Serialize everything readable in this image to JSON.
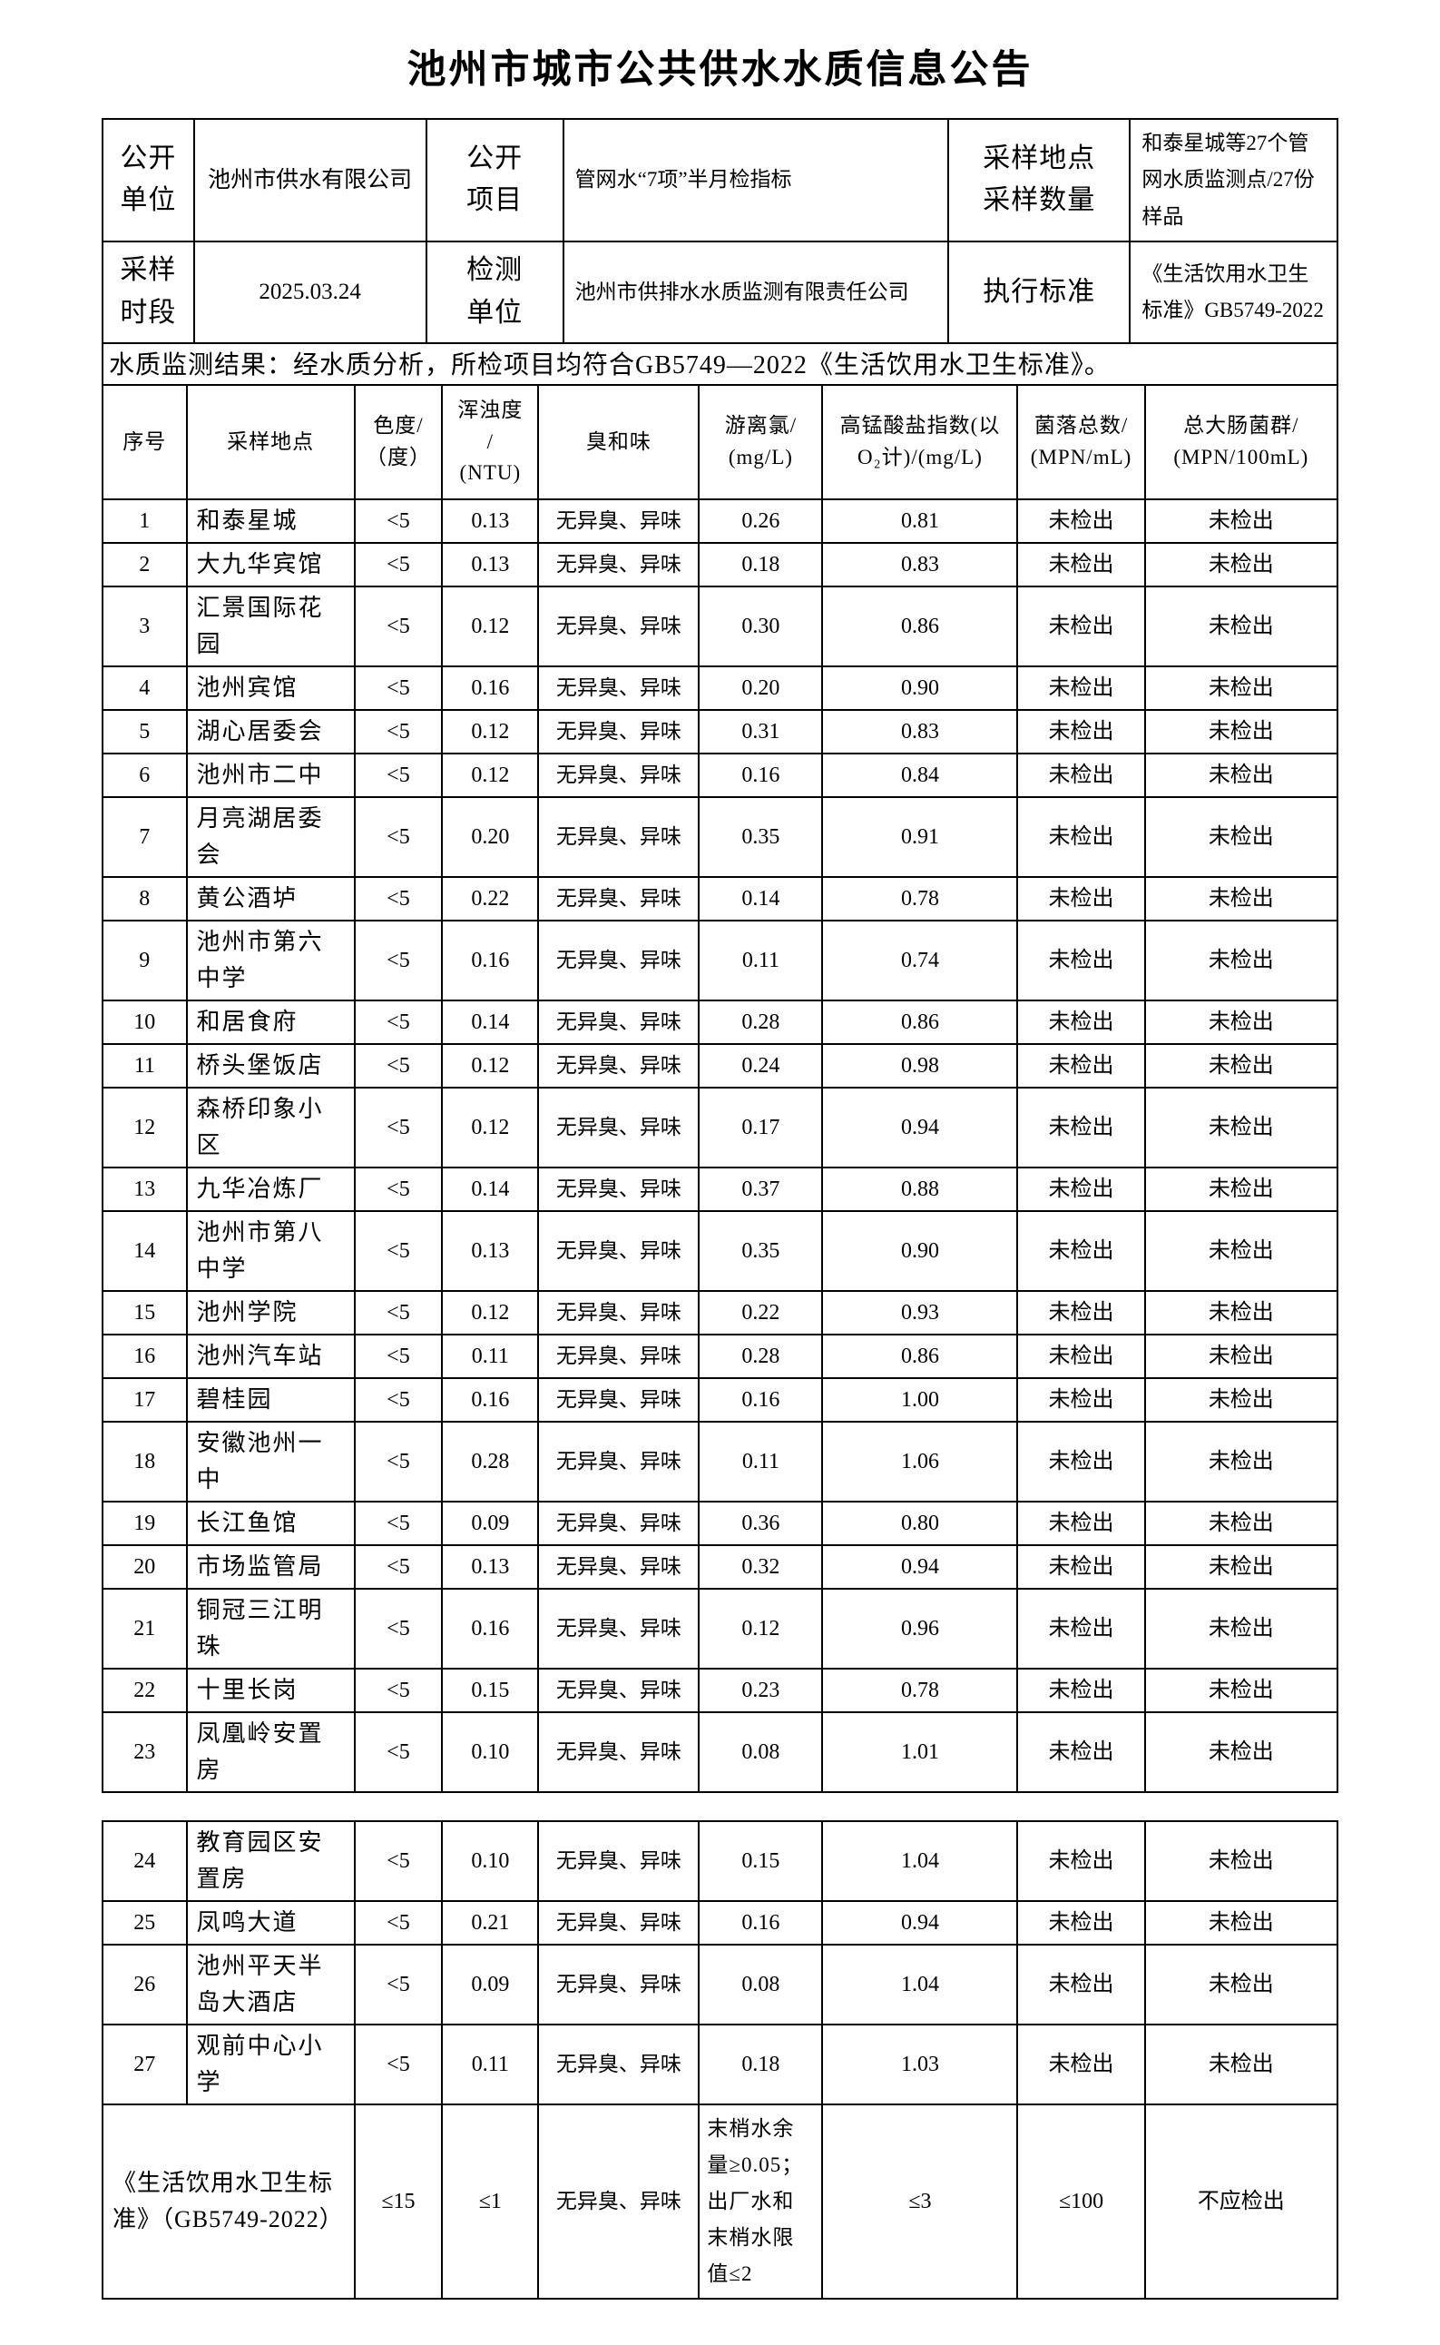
{
  "page": {
    "title": "池州市城市公共供水水质信息公告",
    "colors": {
      "text": "#000000",
      "background": "#ffffff",
      "border": "#000000"
    }
  },
  "info": {
    "row1": {
      "label1": "公开\n单位",
      "value1": "池州市供水有限公司",
      "label2": "公开\n项目",
      "value2": "管网水“7项”半月检指标",
      "label3": "采样地点\n采样数量",
      "value3": "和泰星城等27个管网水质监测点/27份样品"
    },
    "row2": {
      "label1": "采样\n时段",
      "value1": "2025.03.24",
      "label2": "检测\n单位",
      "value2": "池州市供排水水质监测有限责任公司",
      "label3": "执行标准",
      "value3": "《生活饮用水卫生标准》GB5749-2022"
    }
  },
  "statement": "水质监测结果：经水质分析，所检项目均符合GB5749—2022《生活饮用水卫生标准》。",
  "table": {
    "headers": [
      "序号",
      "采样地点",
      "色度/\n（度）",
      "浑浊度\n/\n(NTU)",
      "臭和味",
      "游离氯/\n(mg/L)",
      "高锰酸盐指数(以\nO₂计)/(mg/L)",
      "菌落总数/\n(MPN/mL)",
      "总大肠菌群/\n(MPN/100mL)"
    ],
    "section1": [
      [
        "1",
        "和泰星城",
        "<5",
        "0.13",
        "无异臭、异味",
        "0.26",
        "0.81",
        "未检出",
        "未检出"
      ],
      [
        "2",
        "大九华宾馆",
        "<5",
        "0.13",
        "无异臭、异味",
        "0.18",
        "0.83",
        "未检出",
        "未检出"
      ],
      [
        "3",
        "汇景国际花园",
        "<5",
        "0.12",
        "无异臭、异味",
        "0.30",
        "0.86",
        "未检出",
        "未检出"
      ],
      [
        "4",
        "池州宾馆",
        "<5",
        "0.16",
        "无异臭、异味",
        "0.20",
        "0.90",
        "未检出",
        "未检出"
      ],
      [
        "5",
        "湖心居委会",
        "<5",
        "0.12",
        "无异臭、异味",
        "0.31",
        "0.83",
        "未检出",
        "未检出"
      ],
      [
        "6",
        "池州市二中",
        "<5",
        "0.12",
        "无异臭、异味",
        "0.16",
        "0.84",
        "未检出",
        "未检出"
      ],
      [
        "7",
        "月亮湖居委会",
        "<5",
        "0.20",
        "无异臭、异味",
        "0.35",
        "0.91",
        "未检出",
        "未检出"
      ],
      [
        "8",
        "黄公酒垆",
        "<5",
        "0.22",
        "无异臭、异味",
        "0.14",
        "0.78",
        "未检出",
        "未检出"
      ],
      [
        "9",
        "池州市第六中学",
        "<5",
        "0.16",
        "无异臭、异味",
        "0.11",
        "0.74",
        "未检出",
        "未检出"
      ],
      [
        "10",
        "和居食府",
        "<5",
        "0.14",
        "无异臭、异味",
        "0.28",
        "0.86",
        "未检出",
        "未检出"
      ],
      [
        "11",
        "桥头堡饭店",
        "<5",
        "0.12",
        "无异臭、异味",
        "0.24",
        "0.98",
        "未检出",
        "未检出"
      ],
      [
        "12",
        "森桥印象小区",
        "<5",
        "0.12",
        "无异臭、异味",
        "0.17",
        "0.94",
        "未检出",
        "未检出"
      ],
      [
        "13",
        "九华冶炼厂",
        "<5",
        "0.14",
        "无异臭、异味",
        "0.37",
        "0.88",
        "未检出",
        "未检出"
      ],
      [
        "14",
        "池州市第八中学",
        "<5",
        "0.13",
        "无异臭、异味",
        "0.35",
        "0.90",
        "未检出",
        "未检出"
      ],
      [
        "15",
        "池州学院",
        "<5",
        "0.12",
        "无异臭、异味",
        "0.22",
        "0.93",
        "未检出",
        "未检出"
      ],
      [
        "16",
        "池州汽车站",
        "<5",
        "0.11",
        "无异臭、异味",
        "0.28",
        "0.86",
        "未检出",
        "未检出"
      ],
      [
        "17",
        "碧桂园",
        "<5",
        "0.16",
        "无异臭、异味",
        "0.16",
        "1.00",
        "未检出",
        "未检出"
      ],
      [
        "18",
        "安徽池州一中",
        "<5",
        "0.28",
        "无异臭、异味",
        "0.11",
        "1.06",
        "未检出",
        "未检出"
      ],
      [
        "19",
        "长江鱼馆",
        "<5",
        "0.09",
        "无异臭、异味",
        "0.36",
        "0.80",
        "未检出",
        "未检出"
      ],
      [
        "20",
        "市场监管局",
        "<5",
        "0.13",
        "无异臭、异味",
        "0.32",
        "0.94",
        "未检出",
        "未检出"
      ],
      [
        "21",
        "铜冠三江明珠",
        "<5",
        "0.16",
        "无异臭、异味",
        "0.12",
        "0.96",
        "未检出",
        "未检出"
      ],
      [
        "22",
        "十里长岗",
        "<5",
        "0.15",
        "无异臭、异味",
        "0.23",
        "0.78",
        "未检出",
        "未检出"
      ],
      [
        "23",
        "凤凰岭安置房",
        "<5",
        "0.10",
        "无异臭、异味",
        "0.08",
        "1.01",
        "未检出",
        "未检出"
      ]
    ],
    "section2": [
      [
        "24",
        "教育园区安置房",
        "<5",
        "0.10",
        "无异臭、异味",
        "0.15",
        "1.04",
        "未检出",
        "未检出"
      ],
      [
        "25",
        "凤鸣大道",
        "<5",
        "0.21",
        "无异臭、异味",
        "0.16",
        "0.94",
        "未检出",
        "未检出"
      ],
      [
        "26",
        "池州平天半岛大酒店",
        "<5",
        "0.09",
        "无异臭、异味",
        "0.08",
        "1.04",
        "未检出",
        "未检出"
      ],
      [
        "27",
        "观前中心小学",
        "<5",
        "0.11",
        "无异臭、异味",
        "0.18",
        "1.03",
        "未检出",
        "未检出"
      ]
    ],
    "standard": {
      "label": "《生活饮用水卫生标准》（GB5749-2022）",
      "values": [
        "≤15",
        "≤1",
        "无异臭、异味",
        "末梢水余量≥0.05；出厂水和末梢水限值≤2",
        "≤3",
        "≤100",
        "不应检出"
      ]
    }
  }
}
